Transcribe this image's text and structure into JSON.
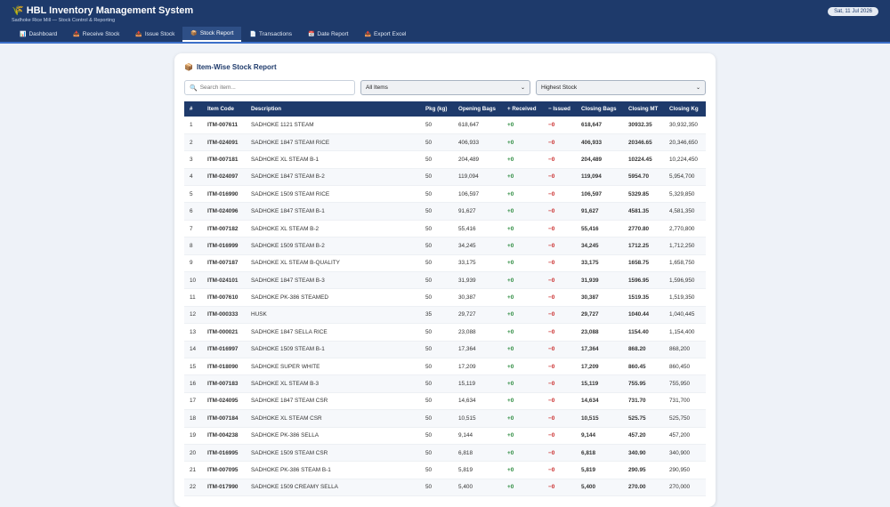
{
  "header": {
    "icon": "rice-sheaf-icon",
    "title": "HBL Inventory Management System",
    "subtitle": "Sadhoke Rice Mill — Stock Control & Reporting",
    "date": "Sat, 11 Jul 2026"
  },
  "nav": {
    "tabs": [
      {
        "label": "Dashboard",
        "icon": "chart-icon",
        "glyph": "📊"
      },
      {
        "label": "Receive Stock",
        "icon": "inbox-icon",
        "glyph": "📥"
      },
      {
        "label": "Issue Stock",
        "icon": "outbox-icon",
        "glyph": "📤"
      },
      {
        "label": "Stock Report",
        "icon": "box-icon",
        "glyph": "📦"
      },
      {
        "label": "Transactions",
        "icon": "document-icon",
        "glyph": "📄"
      },
      {
        "label": "Date Report",
        "icon": "calendar-icon",
        "glyph": "📅"
      },
      {
        "label": "Export Excel",
        "icon": "export-icon",
        "glyph": "📤"
      }
    ],
    "active_index": 3
  },
  "report": {
    "title": "Item-Wise Stock Report",
    "search_placeholder": "Search item...",
    "filter_selected": "All Items",
    "sort_selected": "Highest Stock"
  },
  "table": {
    "headers": [
      "#",
      "Item Code",
      "Description",
      "Pkg (kg)",
      "Opening Bags",
      "+ Received",
      "− Issued",
      "Closing Bags",
      "Closing MT",
      "Closing Kg"
    ],
    "rows": [
      [
        "1",
        "ITM-007611",
        "SADHOKE 1121 STEAM",
        "50",
        "618,647",
        "+0",
        "−0",
        "618,647",
        "30932.35",
        "30,932,350"
      ],
      [
        "2",
        "ITM-024091",
        "SADHOKE 1847 STEAM RICE",
        "50",
        "406,933",
        "+0",
        "−0",
        "406,933",
        "20346.65",
        "20,346,650"
      ],
      [
        "3",
        "ITM-007181",
        "SADHOKE XL STEAM B-1",
        "50",
        "204,489",
        "+0",
        "−0",
        "204,489",
        "10224.45",
        "10,224,450"
      ],
      [
        "4",
        "ITM-024097",
        "SADHOKE 1847 STEAM B-2",
        "50",
        "119,094",
        "+0",
        "−0",
        "119,094",
        "5954.70",
        "5,954,700"
      ],
      [
        "5",
        "ITM-016990",
        "SADHOKE 1509 STEAM RICE",
        "50",
        "106,597",
        "+0",
        "−0",
        "106,597",
        "5329.85",
        "5,329,850"
      ],
      [
        "6",
        "ITM-024096",
        "SADHOKE 1847 STEAM B-1",
        "50",
        "91,627",
        "+0",
        "−0",
        "91,627",
        "4581.35",
        "4,581,350"
      ],
      [
        "7",
        "ITM-007182",
        "SADHOKE XL STEAM B-2",
        "50",
        "55,416",
        "+0",
        "−0",
        "55,416",
        "2770.80",
        "2,770,800"
      ],
      [
        "8",
        "ITM-016999",
        "SADHOKE 1509 STEAM B-2",
        "50",
        "34,245",
        "+0",
        "−0",
        "34,245",
        "1712.25",
        "1,712,250"
      ],
      [
        "9",
        "ITM-007187",
        "SADHOKE XL STEAM B-QUALITY",
        "50",
        "33,175",
        "+0",
        "−0",
        "33,175",
        "1658.75",
        "1,658,750"
      ],
      [
        "10",
        "ITM-024101",
        "SADHOKE 1847 STEAM B-3",
        "50",
        "31,939",
        "+0",
        "−0",
        "31,939",
        "1596.95",
        "1,596,950"
      ],
      [
        "11",
        "ITM-007610",
        "SADHOKE PK-386 STEAMED",
        "50",
        "30,387",
        "+0",
        "−0",
        "30,387",
        "1519.35",
        "1,519,350"
      ],
      [
        "12",
        "ITM-000333",
        "HUSK",
        "35",
        "29,727",
        "+0",
        "−0",
        "29,727",
        "1040.44",
        "1,040,445"
      ],
      [
        "13",
        "ITM-000021",
        "SADHOKE 1847 SELLA RICE",
        "50",
        "23,088",
        "+0",
        "−0",
        "23,088",
        "1154.40",
        "1,154,400"
      ],
      [
        "14",
        "ITM-016997",
        "SADHOKE 1509 STEAM B-1",
        "50",
        "17,364",
        "+0",
        "−0",
        "17,364",
        "868.20",
        "868,200"
      ],
      [
        "15",
        "ITM-018090",
        "SADHOKE SUPER WHITE",
        "50",
        "17,209",
        "+0",
        "−0",
        "17,209",
        "860.45",
        "860,450"
      ],
      [
        "16",
        "ITM-007183",
        "SADHOKE XL STEAM B-3",
        "50",
        "15,119",
        "+0",
        "−0",
        "15,119",
        "755.95",
        "755,950"
      ],
      [
        "17",
        "ITM-024095",
        "SADHOKE 1847 STEAM CSR",
        "50",
        "14,634",
        "+0",
        "−0",
        "14,634",
        "731.70",
        "731,700"
      ],
      [
        "18",
        "ITM-007184",
        "SADHOKE XL STEAM CSR",
        "50",
        "10,515",
        "+0",
        "−0",
        "10,515",
        "525.75",
        "525,750"
      ],
      [
        "19",
        "ITM-004238",
        "SADHOKE PK-386 SELLA",
        "50",
        "9,144",
        "+0",
        "−0",
        "9,144",
        "457.20",
        "457,200"
      ],
      [
        "20",
        "ITM-016995",
        "SADHOKE 1509 STEAM CSR",
        "50",
        "6,818",
        "+0",
        "−0",
        "6,818",
        "340.90",
        "340,900"
      ],
      [
        "21",
        "ITM-007095",
        "SADHOKE PK-386 STEAM B-1",
        "50",
        "5,819",
        "+0",
        "−0",
        "5,819",
        "290.95",
        "290,950"
      ],
      [
        "22",
        "ITM-017990",
        "SADHOKE 1509 CREAMY SELLA",
        "50",
        "5,400",
        "+0",
        "−0",
        "5,400",
        "270.00",
        "270,000"
      ]
    ]
  },
  "colors": {
    "header_bg": "#1e3a6b",
    "received": "#2b8a3e",
    "issued": "#c92a2a"
  }
}
